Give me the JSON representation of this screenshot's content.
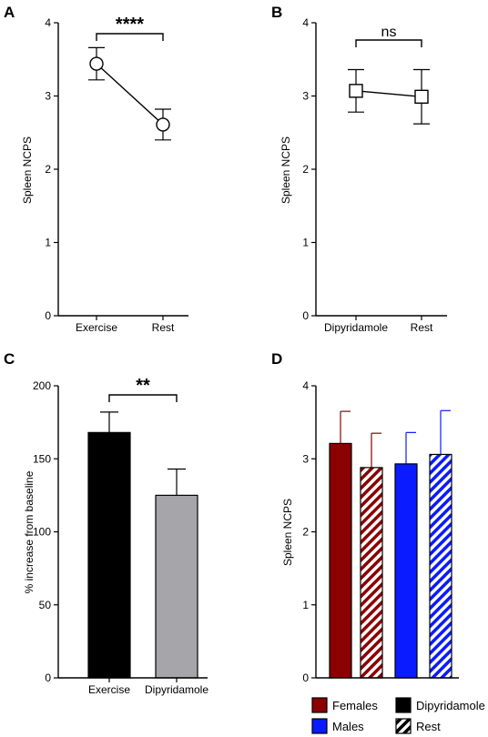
{
  "panels": [
    {
      "letter": "A"
    },
    {
      "letter": "B"
    },
    {
      "letter": "C"
    },
    {
      "letter": "D"
    }
  ],
  "chart_data": [
    {
      "panel": "A",
      "type": "line",
      "marker": "circle",
      "ylabel": "Spleen NCPS",
      "xlabel": "",
      "ylim": [
        0,
        4
      ],
      "yticks": [
        "0",
        "1",
        "2",
        "3",
        "4"
      ],
      "categories": [
        "Exercise",
        "Rest"
      ],
      "series": [
        {
          "values": [
            3.44,
            2.61
          ],
          "error": [
            0.22,
            0.21
          ]
        }
      ],
      "significance": {
        "from": 0,
        "to": 1,
        "label": "****"
      }
    },
    {
      "panel": "B",
      "type": "line",
      "marker": "square",
      "ylabel": "Spleen NCPS",
      "xlabel": "",
      "ylim": [
        0,
        4
      ],
      "yticks": [
        "0",
        "1",
        "2",
        "3",
        "4"
      ],
      "categories": [
        "Dipyridamole",
        "Rest"
      ],
      "series": [
        {
          "values": [
            3.07,
            2.99
          ],
          "error": [
            0.29,
            0.37
          ]
        }
      ],
      "significance": {
        "from": 0,
        "to": 1,
        "label": "ns"
      }
    },
    {
      "panel": "C",
      "type": "bar",
      "ylabel": "% increase from baseline",
      "xlabel": "",
      "ylim": [
        0,
        200
      ],
      "yticks": [
        "0",
        "50",
        "100",
        "150",
        "200"
      ],
      "categories": [
        "Exercise",
        "Dipyridamole"
      ],
      "values": [
        168,
        125
      ],
      "error": [
        14,
        18
      ],
      "colors": [
        "#000000",
        "#a6a6aa"
      ],
      "significance": {
        "from": 0,
        "to": 1,
        "label": "**"
      }
    },
    {
      "panel": "D",
      "type": "bar",
      "ylabel": "Spleen NCPS",
      "xlabel": "",
      "ylim": [
        0,
        4
      ],
      "yticks": [
        "0",
        "1",
        "2",
        "3",
        "4"
      ],
      "values": [
        3.21,
        2.88,
        2.93,
        3.06
      ],
      "error": [
        0.44,
        0.47,
        0.43,
        0.6
      ],
      "bars": [
        {
          "sex": "Females",
          "condition": "Dipyridamole",
          "color": "#8b0000"
        },
        {
          "sex": "Females",
          "condition": "Rest",
          "color": "#8b0000"
        },
        {
          "sex": "Males",
          "condition": "Dipyridamole",
          "color": "#0a1bff"
        },
        {
          "sex": "Males",
          "condition": "Rest",
          "color": "#0a1bff"
        }
      ],
      "legend": [
        {
          "label": "Females",
          "color": "#8b0000",
          "pattern": "solid"
        },
        {
          "label": "Dipyridamole",
          "color": "#000000",
          "pattern": "solid"
        },
        {
          "label": "Males",
          "color": "#0a1bff",
          "pattern": "solid"
        },
        {
          "label": "Rest",
          "color": "#000000",
          "pattern": "hatch"
        }
      ],
      "legend_position": "bottom"
    }
  ]
}
